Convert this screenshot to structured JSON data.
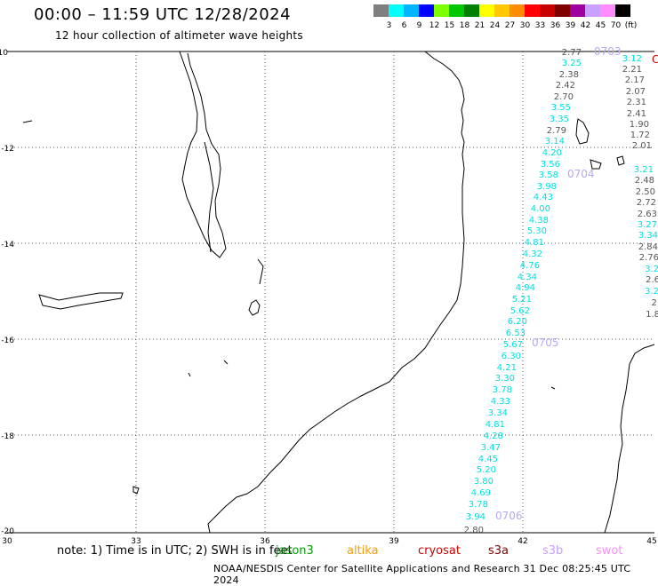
{
  "title": "00:00 – 11:59 UTC 12/28/2024",
  "subtitle": "12 hour collection of altimeter wave heights",
  "color_scale": {
    "labels": [
      "3",
      "6",
      "9",
      "12",
      "15",
      "18",
      "21",
      "24",
      "27",
      "30",
      "33",
      "36",
      "39",
      "42",
      "45",
      "70",
      "(ft)"
    ],
    "colors": [
      "#7f7f7f",
      "#00ffff",
      "#00b4ff",
      "#0000ff",
      "#7fff00",
      "#00c800",
      "#008000",
      "#ffff00",
      "#ffc800",
      "#ff8c00",
      "#ff0000",
      "#c80000",
      "#800000",
      "#a000a0",
      "#c8a0ff",
      "#ff8cff",
      "#000000"
    ]
  },
  "axes": {
    "lat_labels": [
      "-10",
      "-12",
      "-14",
      "-16",
      "-18",
      "-20"
    ],
    "lon_labels": [
      "30",
      "33",
      "36",
      "39",
      "42",
      "45"
    ]
  },
  "tracks": [
    {
      "id": "gray-west",
      "color": "#555555",
      "values": [
        "2.77",
        "2.38",
        "2.42",
        "2.70",
        "2.79",
        "2.80"
      ]
    },
    {
      "id": "cyan-main",
      "color": "#00e0e0",
      "values": [
        "3.25",
        "3.55",
        "3.35",
        "3.14",
        "4.20",
        "3.56",
        "3.58",
        "3.98",
        "4.43",
        "4.00",
        "4.38",
        "5.30",
        "4.81",
        "4.32",
        "4.76",
        "4.34",
        "4.94",
        "5.21",
        "5.62",
        "6.20",
        "6.53",
        "5.67",
        "6.30",
        "4.21",
        "3.30",
        "3.78",
        "4.33",
        "3.34",
        "4.81",
        "4.28",
        "3.47",
        "4.45",
        "5.20",
        "3.80",
        "4.69",
        "3.78",
        "3.94"
      ]
    },
    {
      "id": "gray-east",
      "color": "#555555",
      "values": [
        "2.21",
        "2.17",
        "2.07",
        "2.31",
        "2.41",
        "1.90",
        "1.72",
        "2.01",
        "2.48",
        "2.50",
        "2.72",
        "2.63",
        "2.84",
        "2.76",
        "2.6",
        "2.",
        "1.8"
      ]
    },
    {
      "id": "cyan-east",
      "color": "#00e0e0",
      "values": [
        "3.12",
        "3.21",
        "3.27",
        "3.34",
        "3.2",
        "3.2"
      ]
    }
  ],
  "pass_labels": [
    "0703",
    "0704",
    "0705",
    "0706"
  ],
  "edge_label": "C",
  "note_prefix": "note: 1) Time is in UTC; 2) SWH is in feet",
  "satellites": [
    {
      "name": "jason3",
      "color": "#00a000"
    },
    {
      "name": "altika",
      "color": "#ff9900"
    },
    {
      "name": "cryosat",
      "color": "#cc0000"
    },
    {
      "name": "s3a",
      "color": "#800000"
    },
    {
      "name": "s3b",
      "color": "#c8a0ff"
    },
    {
      "name": "swot",
      "color": "#ff8cff"
    }
  ],
  "credit": "NOAA/NESDIS Center for Satellite Applications and Research    31 Dec 08:25:45 UTC 2024"
}
